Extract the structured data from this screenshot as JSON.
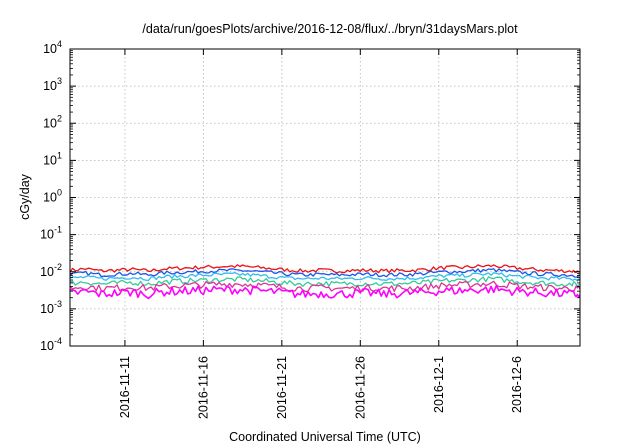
{
  "chart_data": {
    "type": "line",
    "title": "/data/run/goesPlots/archive/2016-12-08/flux/../bryn/31daysMars.plot",
    "xlabel": "Coordinated Universal Time (UTC)",
    "ylabel": "cGy/day",
    "yscale": "log",
    "ylim": [
      0.0001,
      10000
    ],
    "xlim": [
      "2016-11-07T12:00",
      "2016-12-10T00:00"
    ],
    "grid": true,
    "y_ticks": [
      {
        "base": "10",
        "exp": "-4"
      },
      {
        "base": "10",
        "exp": "-3"
      },
      {
        "base": "10",
        "exp": "-2"
      },
      {
        "base": "10",
        "exp": "-1"
      },
      {
        "base": "10",
        "exp": "0"
      },
      {
        "base": "10",
        "exp": "1"
      },
      {
        "base": "10",
        "exp": "2"
      },
      {
        "base": "10",
        "exp": "3"
      },
      {
        "base": "10",
        "exp": "4"
      }
    ],
    "x_ticks": [
      {
        "date": "2016-11-11T00:00",
        "label": "2016-11-11"
      },
      {
        "date": "2016-11-16T00:00",
        "label": "2016-11-16"
      },
      {
        "date": "2016-11-21T00:00",
        "label": "2016-11-21"
      },
      {
        "date": "2016-11-26T00:00",
        "label": "2016-11-26"
      },
      {
        "date": "2016-12-01T00:00",
        "label": "2016-12-1"
      },
      {
        "date": "2016-12-06T00:00",
        "label": "2016-12-6"
      }
    ],
    "x": [
      "2016-11-07T12:00",
      "2016-11-08T12:00",
      "2016-11-09T12:00",
      "2016-11-10T12:00",
      "2016-11-11T12:00",
      "2016-11-12T12:00",
      "2016-11-13T12:00",
      "2016-11-14T12:00",
      "2016-11-15T12:00",
      "2016-11-16T12:00",
      "2016-11-17T12:00",
      "2016-11-18T12:00",
      "2016-11-19T12:00",
      "2016-11-20T12:00",
      "2016-11-21T12:00",
      "2016-11-22T12:00",
      "2016-11-23T12:00",
      "2016-11-24T12:00",
      "2016-11-25T12:00",
      "2016-11-26T12:00",
      "2016-11-27T12:00",
      "2016-11-28T12:00",
      "2016-11-29T12:00",
      "2016-11-30T12:00",
      "2016-12-01T12:00",
      "2016-12-02T12:00",
      "2016-12-03T12:00",
      "2016-12-04T12:00",
      "2016-12-05T12:00",
      "2016-12-06T12:00",
      "2016-12-07T12:00",
      "2016-12-08T12:00",
      "2016-12-09T12:00",
      "2016-12-10T00:00"
    ],
    "series": [
      {
        "color": "#ee1111",
        "values": [
          0.011,
          0.012,
          0.0105,
          0.011,
          0.0115,
          0.0105,
          0.012,
          0.0125,
          0.013,
          0.0135,
          0.014,
          0.014,
          0.013,
          0.012,
          0.011,
          0.0105,
          0.011,
          0.0105,
          0.0108,
          0.011,
          0.0105,
          0.0108,
          0.011,
          0.012,
          0.013,
          0.013,
          0.014,
          0.0145,
          0.013,
          0.012,
          0.0112,
          0.0108,
          0.0104,
          0.01
        ]
      },
      {
        "color": "#1a55ee",
        "values": [
          0.0085,
          0.0092,
          0.0082,
          0.0086,
          0.009,
          0.0082,
          0.0093,
          0.0097,
          0.0101,
          0.0105,
          0.0108,
          0.0108,
          0.0101,
          0.0093,
          0.0085,
          0.0082,
          0.0085,
          0.0082,
          0.0084,
          0.0086,
          0.0082,
          0.0084,
          0.0086,
          0.0093,
          0.0101,
          0.0101,
          0.0108,
          0.0112,
          0.0101,
          0.0093,
          0.0087,
          0.0084,
          0.0081,
          0.0078
        ]
      },
      {
        "color": "#33bbee",
        "values": [
          0.0067,
          0.0072,
          0.0065,
          0.0068,
          0.0071,
          0.0065,
          0.0073,
          0.0076,
          0.0079,
          0.0082,
          0.0085,
          0.0085,
          0.0079,
          0.0073,
          0.0067,
          0.0065,
          0.0067,
          0.0065,
          0.0066,
          0.0068,
          0.0065,
          0.0066,
          0.0068,
          0.0073,
          0.0079,
          0.0079,
          0.0085,
          0.0088,
          0.0079,
          0.0073,
          0.0068,
          0.0066,
          0.0064,
          0.0062
        ]
      },
      {
        "color": "#33cc99",
        "values": [
          0.0049,
          0.0053,
          0.0047,
          0.0049,
          0.0052,
          0.0047,
          0.0053,
          0.0056,
          0.0058,
          0.006,
          0.0062,
          0.0062,
          0.0058,
          0.0053,
          0.0049,
          0.0047,
          0.0049,
          0.0047,
          0.0048,
          0.0049,
          0.0047,
          0.0048,
          0.0049,
          0.0053,
          0.0058,
          0.0058,
          0.0062,
          0.0064,
          0.0058,
          0.0053,
          0.005,
          0.0048,
          0.0046,
          0.0045
        ]
      },
      {
        "color": "#dd3399",
        "values": [
          0.0037,
          0.004,
          0.0036,
          0.0037,
          0.0039,
          0.0036,
          0.004,
          0.0042,
          0.0044,
          0.0045,
          0.0047,
          0.0047,
          0.0044,
          0.004,
          0.0037,
          0.0036,
          0.0037,
          0.0036,
          0.0036,
          0.0037,
          0.0036,
          0.0036,
          0.0037,
          0.004,
          0.0044,
          0.0044,
          0.0047,
          0.0048,
          0.0044,
          0.004,
          0.0038,
          0.0036,
          0.0035,
          0.0034
        ]
      },
      {
        "color": "#ff00ff",
        "values": [
          0.0026,
          0.0029,
          0.0025,
          0.0027,
          0.0028,
          0.0025,
          0.0029,
          0.003,
          0.0031,
          0.0032,
          0.0033,
          0.0033,
          0.0031,
          0.0029,
          0.0026,
          0.0025,
          0.0026,
          0.0025,
          0.0026,
          0.0027,
          0.0025,
          0.0026,
          0.0027,
          0.0029,
          0.0031,
          0.0031,
          0.0033,
          0.0034,
          0.0031,
          0.0029,
          0.0027,
          0.0026,
          0.0025,
          0.0024
        ]
      }
    ]
  }
}
